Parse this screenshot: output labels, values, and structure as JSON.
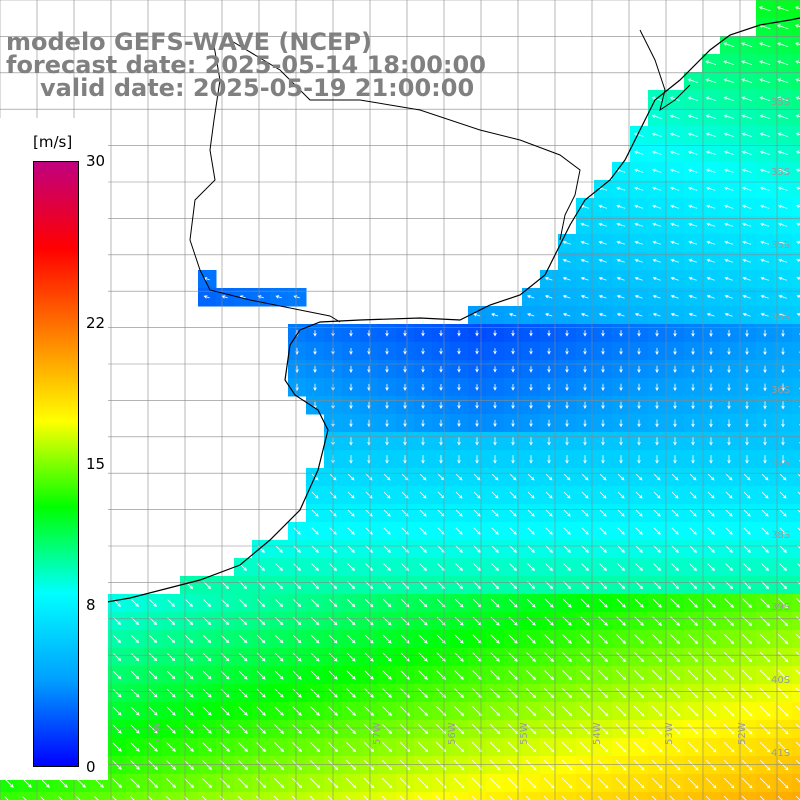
{
  "title": {
    "line1": "modelo GEFS-WAVE (NCEP)",
    "line2": "forecast date: 2025-05-14 18:00:00",
    "line3": "valid date: 2025-05-19 21:00:00"
  },
  "colorbar": {
    "unit": "[m/s]",
    "min": 0,
    "max": 30,
    "ticks": [
      {
        "value": 30,
        "label": "30"
      },
      {
        "value": 22,
        "label": "22"
      },
      {
        "value": 15,
        "label": "15"
      },
      {
        "value": 8,
        "label": "8"
      },
      {
        "value": 0,
        "label": "0"
      }
    ],
    "colors": [
      "#0000ff",
      "#00a0ff",
      "#00ffff",
      "#00ff00",
      "#ffff00",
      "#ff7f00",
      "#ff0000",
      "#c0007f"
    ]
  },
  "grid": {
    "lat_labels": [
      "35S",
      "35S",
      "35S",
      "35S",
      "36S",
      "37S",
      "38S",
      "39S",
      "40S",
      "41S"
    ],
    "lon_labels": [
      "57W",
      "56W",
      "55W",
      "54W",
      "53W",
      "52W",
      "51W"
    ]
  },
  "colors": {
    "land": "#ffffff",
    "coast": "#000000",
    "grid": "#888888",
    "arrow": "#ffffff"
  }
}
